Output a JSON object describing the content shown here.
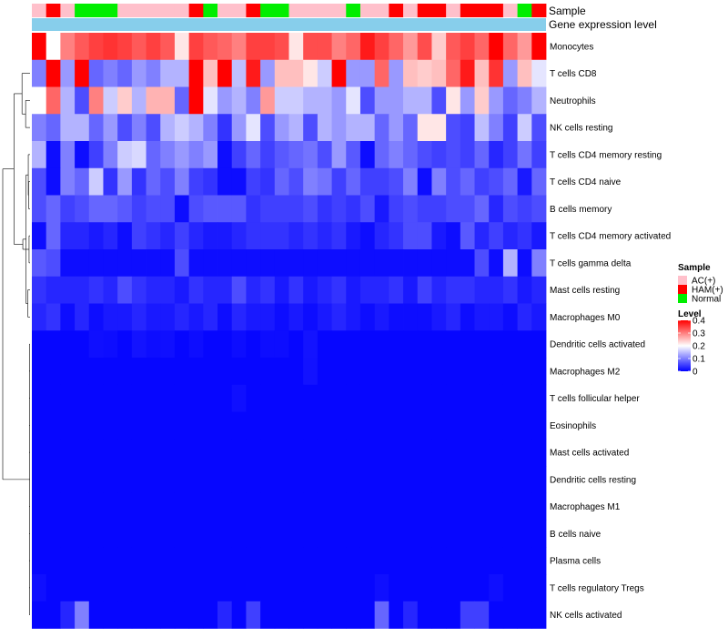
{
  "chart_data": {
    "type": "heatmap",
    "title": "",
    "annotation_labels": {
      "sample": "Sample",
      "expression": "Gene expression level"
    },
    "colors": {
      "high": "#ff0000",
      "mid": "#ffffff",
      "low": "#0000ff",
      "expression_bar": "#87ceeb",
      "AC(+)": "#ffc0cb",
      "HAM(+)": "#ff0000",
      "Normal": "#00ee00"
    },
    "sample_groups": [
      "AC(+)",
      "HAM(+)",
      "AC(+)",
      "Normal",
      "Normal",
      "Normal",
      "AC(+)",
      "AC(+)",
      "AC(+)",
      "AC(+)",
      "AC(+)",
      "HAM(+)",
      "Normal",
      "AC(+)",
      "AC(+)",
      "HAM(+)",
      "Normal",
      "Normal",
      "AC(+)",
      "AC(+)",
      "AC(+)",
      "AC(+)",
      "Normal",
      "AC(+)",
      "AC(+)",
      "HAM(+)",
      "AC(+)",
      "HAM(+)",
      "HAM(+)",
      "AC(+)",
      "HAM(+)",
      "HAM(+)",
      "HAM(+)",
      "AC(+)",
      "Normal",
      "HAM(+)"
    ],
    "rows": [
      "Monocytes",
      "T cells CD8",
      "Neutrophils",
      "NK cells resting",
      "T cells CD4 memory resting",
      "T cells CD4 naive",
      "B cells memory",
      "T cells CD4 memory activated",
      "T cells gamma delta",
      "Mast cells resting",
      "Macrophages M0",
      "Dendritic cells activated",
      "Macrophages M2",
      "T cells follicular helper",
      "Eosinophils",
      "Mast cells activated",
      "Dendritic cells resting",
      "Macrophages M1",
      "B cells naive",
      "Plasma cells",
      "T cells regulatory  Tregs",
      "NK cells activated"
    ],
    "values": [
      [
        0.4,
        0.2,
        0.3,
        0.33,
        0.35,
        0.36,
        0.35,
        0.33,
        0.35,
        0.33,
        0.22,
        0.35,
        0.33,
        0.32,
        0.3,
        0.35,
        0.35,
        0.34,
        0.22,
        0.34,
        0.34,
        0.3,
        0.32,
        0.38,
        0.35,
        0.32,
        0.28,
        0.34,
        0.24,
        0.33,
        0.35,
        0.32,
        0.4,
        0.32,
        0.28,
        0.4
      ],
      [
        0.1,
        0.4,
        0.12,
        0.4,
        0.08,
        0.1,
        0.08,
        0.12,
        0.1,
        0.14,
        0.14,
        0.4,
        0.25,
        0.4,
        0.15,
        0.38,
        0.12,
        0.25,
        0.25,
        0.22,
        0.16,
        0.4,
        0.12,
        0.12,
        0.32,
        0.12,
        0.25,
        0.24,
        0.25,
        0.32,
        0.38,
        0.25,
        0.36,
        0.12,
        0.25,
        0.18
      ],
      [
        0.2,
        0.32,
        0.14,
        0.06,
        0.3,
        0.16,
        0.24,
        0.14,
        0.26,
        0.26,
        0.08,
        0.4,
        0.18,
        0.12,
        0.14,
        0.1,
        0.28,
        0.16,
        0.16,
        0.14,
        0.14,
        0.12,
        0.18,
        0.06,
        0.12,
        0.12,
        0.14,
        0.14,
        0.06,
        0.22,
        0.12,
        0.24,
        0.12,
        0.08,
        0.1,
        0.14
      ],
      [
        0.1,
        0.08,
        0.14,
        0.14,
        0.08,
        0.12,
        0.06,
        0.1,
        0.06,
        0.14,
        0.16,
        0.14,
        0.1,
        0.04,
        0.12,
        0.18,
        0.06,
        0.12,
        0.14,
        0.06,
        0.14,
        0.12,
        0.14,
        0.14,
        0.08,
        0.12,
        0.08,
        0.22,
        0.22,
        0.06,
        0.05,
        0.15,
        0.1,
        0.05,
        0.16,
        0.06
      ],
      [
        0.14,
        0.01,
        0.1,
        0.01,
        0.05,
        0.1,
        0.16,
        0.17,
        0.08,
        0.1,
        0.12,
        0.1,
        0.12,
        0.01,
        0.05,
        0.08,
        0.05,
        0.07,
        0.08,
        0.09,
        0.06,
        0.12,
        0.07,
        0.01,
        0.08,
        0.1,
        0.08,
        0.06,
        0.05,
        0.06,
        0.05,
        0.08,
        0.03,
        0.05,
        0.09,
        0.05
      ],
      [
        0.06,
        0.01,
        0.1,
        0.08,
        0.16,
        0.04,
        0.12,
        0.04,
        0.08,
        0.06,
        0.1,
        0.05,
        0.04,
        0.01,
        0.01,
        0.05,
        0.04,
        0.08,
        0.06,
        0.1,
        0.09,
        0.05,
        0.08,
        0.05,
        0.05,
        0.06,
        0.1,
        0.01,
        0.1,
        0.06,
        0.08,
        0.05,
        0.06,
        0.08,
        0.02,
        0.08
      ],
      [
        0.06,
        0.08,
        0.05,
        0.06,
        0.08,
        0.08,
        0.07,
        0.05,
        0.06,
        0.06,
        0.01,
        0.06,
        0.07,
        0.07,
        0.07,
        0.04,
        0.05,
        0.05,
        0.05,
        0.06,
        0.04,
        0.05,
        0.04,
        0.06,
        0.02,
        0.05,
        0.06,
        0.05,
        0.05,
        0.06,
        0.06,
        0.08,
        0.03,
        0.06,
        0.05,
        0.06
      ],
      [
        0.01,
        0.08,
        0.03,
        0.03,
        0.02,
        0.03,
        0.01,
        0.05,
        0.04,
        0.03,
        0.05,
        0.03,
        0.02,
        0.02,
        0.03,
        0.04,
        0.04,
        0.04,
        0.03,
        0.04,
        0.03,
        0.04,
        0.02,
        0.01,
        0.03,
        0.04,
        0.06,
        0.06,
        0.02,
        0.01,
        0.07,
        0.03,
        0.05,
        0.03,
        0.04,
        0.02
      ],
      [
        0.07,
        0.06,
        0.01,
        0.01,
        0.01,
        0.01,
        0.01,
        0.01,
        0.01,
        0.01,
        0.06,
        0.01,
        0.01,
        0.01,
        0.01,
        0.01,
        0.01,
        0.01,
        0.01,
        0.01,
        0.01,
        0.01,
        0.01,
        0.01,
        0.01,
        0.01,
        0.01,
        0.01,
        0.01,
        0.01,
        0.01,
        0.06,
        0.01,
        0.14,
        0.01,
        0.1
      ],
      [
        0.04,
        0.03,
        0.03,
        0.03,
        0.04,
        0.03,
        0.06,
        0.04,
        0.03,
        0.03,
        0.02,
        0.04,
        0.03,
        0.03,
        0.06,
        0.03,
        0.04,
        0.02,
        0.04,
        0.02,
        0.03,
        0.04,
        0.02,
        0.03,
        0.03,
        0.04,
        0.02,
        0.05,
        0.03,
        0.04,
        0.04,
        0.03,
        0.03,
        0.04,
        0.02,
        0.03
      ],
      [
        0.03,
        0.04,
        0.01,
        0.03,
        0.01,
        0.02,
        0.02,
        0.03,
        0.02,
        0.02,
        0.03,
        0.02,
        0.03,
        0.01,
        0.03,
        0.02,
        0.02,
        0.01,
        0.02,
        0.01,
        0.02,
        0.03,
        0.02,
        0.01,
        0.02,
        0.01,
        0.01,
        0.01,
        0.02,
        0.03,
        0.01,
        0.02,
        0.02,
        0.01,
        0.03,
        0.02
      ],
      [
        0.005,
        0.005,
        0.005,
        0.005,
        0.012,
        0.01,
        0.005,
        0.015,
        0.01,
        0.012,
        0.005,
        0.01,
        0.005,
        0.005,
        0.01,
        0.005,
        0.01,
        0.01,
        0.005,
        0.015,
        0.005,
        0.005,
        0.005,
        0.005,
        0.005,
        0.005,
        0.005,
        0.005,
        0.005,
        0.005,
        0.005,
        0.005,
        0.005,
        0.005,
        0.005,
        0.005
      ],
      [
        0.005,
        0.005,
        0.005,
        0.005,
        0.005,
        0.005,
        0.005,
        0.005,
        0.005,
        0.005,
        0.005,
        0.005,
        0.005,
        0.005,
        0.005,
        0.005,
        0.005,
        0.005,
        0.005,
        0.014,
        0.005,
        0.005,
        0.005,
        0.005,
        0.005,
        0.005,
        0.005,
        0.005,
        0.005,
        0.005,
        0.005,
        0.005,
        0.005,
        0.005,
        0.005,
        0.005
      ],
      [
        0.005,
        0.005,
        0.005,
        0.005,
        0.005,
        0.005,
        0.005,
        0.005,
        0.005,
        0.005,
        0.005,
        0.005,
        0.005,
        0.005,
        0.012,
        0.005,
        0.005,
        0.005,
        0.005,
        0.005,
        0.005,
        0.005,
        0.005,
        0.005,
        0.005,
        0.005,
        0.005,
        0.005,
        0.005,
        0.005,
        0.005,
        0.005,
        0.005,
        0.005,
        0.005,
        0.005
      ],
      [
        0.005,
        0.005,
        0.005,
        0.005,
        0.005,
        0.005,
        0.005,
        0.005,
        0.005,
        0.005,
        0.005,
        0.005,
        0.005,
        0.005,
        0.005,
        0.005,
        0.005,
        0.005,
        0.005,
        0.005,
        0.005,
        0.005,
        0.005,
        0.005,
        0.005,
        0.005,
        0.005,
        0.005,
        0.005,
        0.005,
        0.005,
        0.005,
        0.005,
        0.005,
        0.005,
        0.005
      ],
      [
        0.005,
        0.005,
        0.005,
        0.005,
        0.005,
        0.005,
        0.005,
        0.005,
        0.005,
        0.005,
        0.005,
        0.005,
        0.005,
        0.005,
        0.005,
        0.005,
        0.005,
        0.005,
        0.005,
        0.005,
        0.005,
        0.005,
        0.005,
        0.005,
        0.005,
        0.005,
        0.005,
        0.005,
        0.005,
        0.005,
        0.005,
        0.005,
        0.005,
        0.005,
        0.005,
        0.005
      ],
      [
        0.005,
        0.005,
        0.005,
        0.005,
        0.005,
        0.005,
        0.005,
        0.005,
        0.005,
        0.005,
        0.005,
        0.005,
        0.005,
        0.005,
        0.005,
        0.005,
        0.005,
        0.005,
        0.005,
        0.005,
        0.005,
        0.005,
        0.005,
        0.005,
        0.005,
        0.005,
        0.005,
        0.005,
        0.005,
        0.005,
        0.005,
        0.005,
        0.005,
        0.005,
        0.005,
        0.005
      ],
      [
        0.005,
        0.005,
        0.005,
        0.005,
        0.005,
        0.005,
        0.005,
        0.005,
        0.005,
        0.005,
        0.005,
        0.005,
        0.005,
        0.005,
        0.005,
        0.005,
        0.005,
        0.005,
        0.005,
        0.005,
        0.005,
        0.005,
        0.005,
        0.005,
        0.005,
        0.005,
        0.005,
        0.005,
        0.005,
        0.005,
        0.005,
        0.005,
        0.005,
        0.005,
        0.005,
        0.005
      ],
      [
        0.005,
        0.005,
        0.005,
        0.005,
        0.005,
        0.005,
        0.005,
        0.005,
        0.005,
        0.005,
        0.005,
        0.005,
        0.005,
        0.005,
        0.005,
        0.005,
        0.005,
        0.005,
        0.005,
        0.005,
        0.005,
        0.005,
        0.005,
        0.005,
        0.005,
        0.005,
        0.005,
        0.005,
        0.005,
        0.005,
        0.005,
        0.005,
        0.005,
        0.005,
        0.005,
        0.005
      ],
      [
        0.005,
        0.005,
        0.005,
        0.005,
        0.005,
        0.005,
        0.005,
        0.005,
        0.005,
        0.005,
        0.005,
        0.005,
        0.005,
        0.005,
        0.005,
        0.005,
        0.005,
        0.005,
        0.005,
        0.005,
        0.005,
        0.005,
        0.005,
        0.005,
        0.005,
        0.005,
        0.005,
        0.005,
        0.005,
        0.005,
        0.005,
        0.005,
        0.005,
        0.005,
        0.005,
        0.005
      ],
      [
        0.012,
        0.005,
        0.005,
        0.005,
        0.005,
        0.005,
        0.005,
        0.005,
        0.005,
        0.005,
        0.005,
        0.005,
        0.005,
        0.005,
        0.005,
        0.005,
        0.005,
        0.005,
        0.005,
        0.005,
        0.005,
        0.005,
        0.005,
        0.005,
        0.012,
        0.005,
        0.005,
        0.005,
        0.005,
        0.005,
        0.005,
        0.005,
        0.012,
        0.005,
        0.005,
        0.005
      ],
      [
        0.005,
        0.005,
        0.03,
        0.1,
        0.005,
        0.005,
        0.005,
        0.005,
        0.005,
        0.005,
        0.005,
        0.005,
        0.005,
        0.03,
        0.005,
        0.05,
        0.005,
        0.005,
        0.005,
        0.005,
        0.005,
        0.005,
        0.005,
        0.005,
        0.08,
        0.005,
        0.03,
        0.005,
        0.005,
        0.005,
        0.05,
        0.05,
        0.005,
        0.005,
        0.005,
        0.005
      ]
    ],
    "dendrogram_merges": [
      [
        7,
        8,
        0.12
      ],
      [
        5,
        6,
        0.18
      ],
      [
        4,
        24,
        0.22
      ],
      [
        9,
        10,
        0.28
      ],
      [
        25,
        26,
        0.5
      ],
      [
        2,
        3,
        0.55
      ],
      [
        23,
        27,
        0.9
      ],
      [
        1,
        28,
        1.0
      ],
      [
        29,
        30,
        2.0
      ],
      [
        22,
        31,
        3.4
      ]
    ],
    "legend_sample": {
      "title": "Sample",
      "items": [
        "AC(+)",
        "HAM(+)",
        "Normal"
      ]
    },
    "legend_level": {
      "title": "Level",
      "ticks": [
        0.4,
        0.3,
        0.2,
        0.1,
        0
      ],
      "tick_labels": [
        "0.4",
        "0.3",
        "0.2",
        "0.1",
        "0"
      ],
      "range": [
        0,
        0.4
      ]
    }
  }
}
